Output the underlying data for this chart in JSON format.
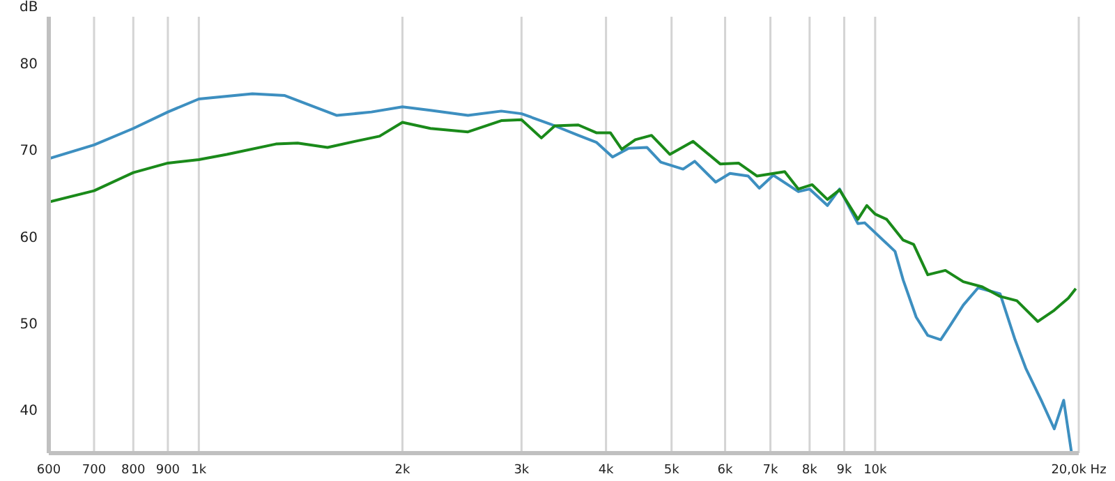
{
  "chart_data": {
    "type": "line",
    "ylabel": "dB",
    "log": "x",
    "grid": true,
    "xlim": [
      600,
      20000
    ],
    "ylim": [
      35,
      85.4
    ],
    "yticks": [
      40,
      50,
      60,
      70,
      80
    ],
    "xticks": [
      600,
      700,
      800,
      900,
      {
        "value": 1000,
        "label": "1k"
      },
      {
        "value": 2000,
        "label": "2k"
      },
      {
        "value": 3000,
        "label": "3k"
      },
      {
        "value": 4000,
        "label": "4k"
      },
      {
        "value": 5000,
        "label": "5k"
      },
      {
        "value": 6000,
        "label": "6k"
      },
      {
        "value": 7000,
        "label": "7k"
      },
      {
        "value": 8000,
        "label": "8k"
      },
      {
        "value": 9000,
        "label": "9k"
      },
      {
        "value": 10000,
        "label": "10k"
      },
      {
        "value": 20000,
        "label": "20,0k Hz"
      }
    ],
    "series": [
      {
        "color": "#3d8fc0",
        "x": [
          600,
          700,
          800,
          900,
          1000,
          1200,
          1340,
          1600,
          1800,
          2000,
          2200,
          2500,
          2800,
          3000,
          3310,
          3640,
          3870,
          4090,
          4320,
          4600,
          4820,
          5200,
          5410,
          5810,
          6100,
          6490,
          6740,
          7070,
          7700,
          8000,
          8500,
          8860,
          9430,
          9650,
          10700,
          11000,
          11500,
          11960,
          12500,
          12900,
          13500,
          14200,
          15300,
          16100,
          16700,
          17600,
          18400,
          19000,
          19500
        ],
        "values": [
          69.0,
          70.6,
          72.5,
          74.4,
          75.9,
          76.5,
          76.3,
          74.0,
          74.4,
          75.0,
          74.6,
          74.0,
          74.5,
          74.2,
          73.0,
          71.7,
          70.9,
          69.2,
          70.2,
          70.3,
          68.6,
          67.8,
          68.7,
          66.3,
          67.3,
          67.0,
          65.6,
          67.1,
          65.2,
          65.5,
          63.6,
          65.5,
          61.5,
          61.6,
          58.3,
          55.0,
          50.7,
          48.6,
          48.1,
          49.7,
          52.1,
          54.1,
          53.4,
          48.1,
          44.8,
          41.1,
          37.8,
          41.1,
          35.2
        ]
      },
      {
        "color": "#1a8a1a",
        "x": [
          600,
          700,
          800,
          900,
          1000,
          1100,
          1300,
          1400,
          1550,
          1700,
          1850,
          2000,
          2200,
          2500,
          2800,
          3000,
          3210,
          3360,
          3640,
          3870,
          4060,
          4220,
          4420,
          4670,
          4970,
          5380,
          5900,
          6280,
          6690,
          7350,
          7700,
          8070,
          8500,
          8860,
          9430,
          9720,
          10000,
          10400,
          11000,
          11400,
          11960,
          12700,
          13500,
          14400,
          15300,
          16200,
          17400,
          18400,
          19300,
          19800
        ],
        "values": [
          64.0,
          65.3,
          67.4,
          68.5,
          68.9,
          69.5,
          70.7,
          70.8,
          70.3,
          71.0,
          71.6,
          73.2,
          72.5,
          72.1,
          73.4,
          73.5,
          71.4,
          72.8,
          72.9,
          72.0,
          72.0,
          70.1,
          71.2,
          71.7,
          69.5,
          71.0,
          68.4,
          68.5,
          67.0,
          67.5,
          65.5,
          66.0,
          64.3,
          65.4,
          62.0,
          63.6,
          62.6,
          62.0,
          59.6,
          59.1,
          55.6,
          56.1,
          54.8,
          54.2,
          53.1,
          52.6,
          50.2,
          51.5,
          52.9,
          54.0
        ]
      }
    ]
  }
}
